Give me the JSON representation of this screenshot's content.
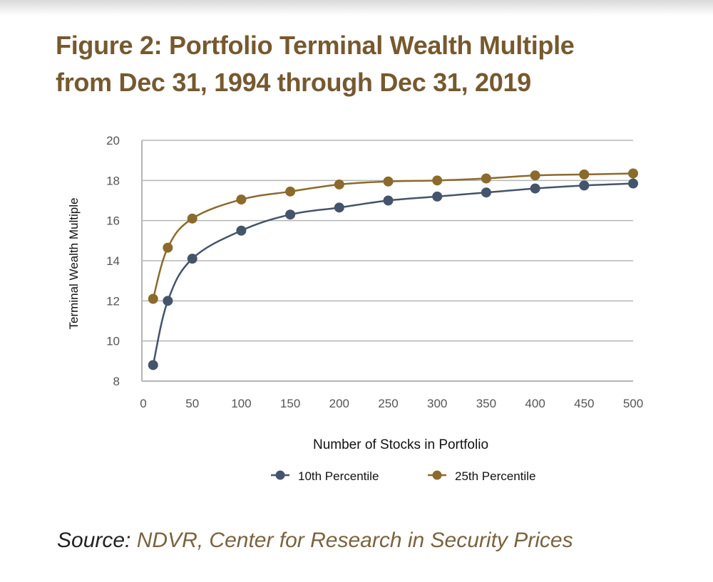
{
  "title": {
    "line1": "Figure 2: Portfolio Terminal Wealth Multiple",
    "line2": "from Dec 31, 1994 through Dec 31, 2019"
  },
  "source": {
    "label": "Source:",
    "text": "NDVR, Center for Research in Security Prices"
  },
  "colors": {
    "title": "#76592f",
    "series_10th": "#44546a",
    "series_25th": "#8b6a2b",
    "grid": "#b5b5b5",
    "source_text": "#7a6340"
  },
  "chart_data": {
    "type": "line",
    "title": "Figure 2: Portfolio Terminal Wealth Multiple from Dec 31, 1994 through Dec 31, 2019",
    "xlabel": "Number of Stocks in Portfolio",
    "ylabel": "Terminal Wealth Multiple",
    "xlim": [
      0,
      500
    ],
    "ylim": [
      8,
      20
    ],
    "xticks": [
      0,
      50,
      100,
      150,
      200,
      250,
      300,
      350,
      400,
      450,
      500
    ],
    "yticks": [
      8,
      10,
      12,
      14,
      16,
      18,
      20
    ],
    "grid": "horizontal",
    "legend": "bottom-center",
    "x": [
      10,
      25,
      50,
      100,
      150,
      200,
      250,
      300,
      350,
      400,
      450,
      500
    ],
    "series": [
      {
        "name": "10th Percentile",
        "color": "#44546a",
        "values": [
          8.8,
          12.0,
          14.1,
          15.5,
          16.3,
          16.65,
          17.0,
          17.2,
          17.4,
          17.6,
          17.75,
          17.85
        ]
      },
      {
        "name": "25th Percentile",
        "color": "#8b6a2b",
        "values": [
          12.1,
          14.65,
          16.1,
          17.05,
          17.45,
          17.8,
          17.95,
          18.0,
          18.1,
          18.25,
          18.3,
          18.35
        ]
      }
    ]
  }
}
